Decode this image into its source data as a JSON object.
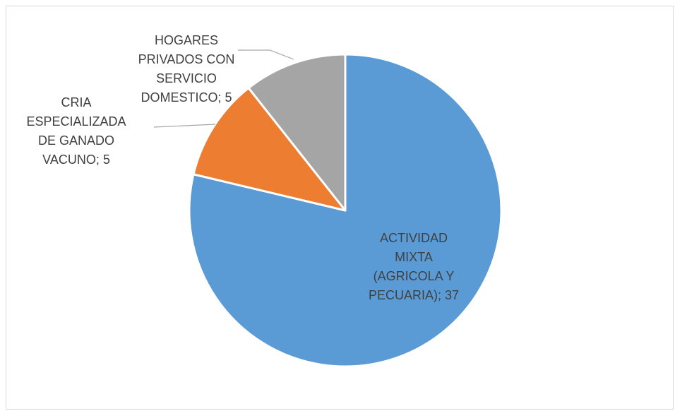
{
  "chart_data": {
    "type": "pie",
    "title": "",
    "slices": [
      {
        "label": "ACTIVIDAD MIXTA (AGRICOLA Y PECUARIA)",
        "value": 37,
        "color": "#5b9bd5",
        "label_lines": [
          "ACTIVIDAD",
          "MIXTA",
          "(AGRICOLA Y",
          "PECUARIA); 37"
        ]
      },
      {
        "label": "CRIA ESPECIALIZADA DE GANADO VACUNO",
        "value": 5,
        "color": "#ed7d31",
        "label_lines": [
          "CRIA",
          "ESPECIALIZADA",
          "DE GANADO",
          "VACUNO; 5"
        ]
      },
      {
        "label": "HOGARES PRIVADOS CON SERVICIO DOMESTICO",
        "value": 5,
        "color": "#a5a5a5",
        "label_lines": [
          "HOGARES",
          "PRIVADOS CON",
          "SERVICIO",
          "DOMESTICO; 5"
        ]
      }
    ],
    "start_angle": "12 o'clock",
    "direction": "clockwise",
    "legend": "none",
    "data_labels": "category; value",
    "slice_border_color": "#ffffff",
    "label_color": "#404040",
    "leader_line_color": "#a6a6a6"
  }
}
